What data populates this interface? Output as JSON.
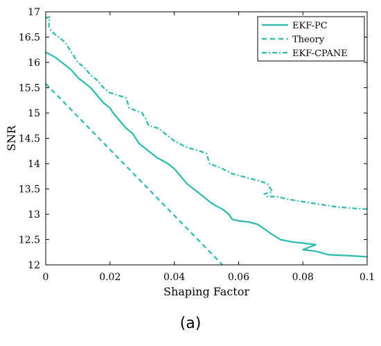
{
  "caption": "(a)",
  "chart_data": {
    "type": "line",
    "xlabel": "Shaping Factor",
    "ylabel": "SNR",
    "xlim": [
      0,
      0.1
    ],
    "ylim": [
      12,
      17
    ],
    "xticks": [
      0,
      0.02,
      0.04,
      0.06,
      0.08,
      0.1
    ],
    "yticks": [
      12,
      12.5,
      13,
      13.5,
      14,
      14.5,
      15,
      15.5,
      16,
      16.5,
      17
    ],
    "xtick_labels": [
      "0",
      "0.02",
      "0.04",
      "0.06",
      "0.08",
      "0.1"
    ],
    "ytick_labels": [
      "12",
      "12.5",
      "13",
      "13.5",
      "14",
      "14.5",
      "15",
      "15.5",
      "16",
      "16.5",
      "17"
    ],
    "legend_position": "top-right",
    "grid": false,
    "color": "#2ab9ad",
    "series": [
      {
        "name": "EKF-PC",
        "style": "solid",
        "x": [
          0,
          0.003,
          0.005,
          0.008,
          0.01,
          0.012,
          0.014,
          0.016,
          0.018,
          0.02,
          0.021,
          0.023,
          0.025,
          0.027,
          0.029,
          0.031,
          0.033,
          0.035,
          0.0352,
          0.038,
          0.04,
          0.042,
          0.044,
          0.046,
          0.048,
          0.05,
          0.052,
          0.055,
          0.057,
          0.058,
          0.06,
          0.063,
          0.066,
          0.07,
          0.073,
          0.077,
          0.08,
          0.084,
          0.08,
          0.084,
          0.088,
          0.095,
          0.1
        ],
        "y": [
          16.2,
          16.1,
          16.0,
          15.85,
          15.7,
          15.6,
          15.5,
          15.35,
          15.2,
          15.1,
          15.0,
          14.85,
          14.7,
          14.6,
          14.4,
          14.3,
          14.2,
          14.1,
          14.1,
          14.0,
          13.9,
          13.75,
          13.6,
          13.5,
          13.4,
          13.3,
          13.2,
          13.1,
          13.0,
          12.9,
          12.87,
          12.85,
          12.8,
          12.62,
          12.5,
          12.45,
          12.43,
          12.4,
          12.3,
          12.27,
          12.2,
          12.18,
          12.16
        ]
      },
      {
        "name": "Theory",
        "style": "dashed",
        "x": [
          0,
          0.055
        ],
        "y": [
          15.58,
          12.0
        ]
      },
      {
        "name": "EKF-CPANE",
        "style": "dashdot",
        "x": [
          0,
          0.0005,
          0.0012,
          0.001,
          0.002,
          0.004,
          0.006,
          0.008,
          0.01,
          0.012,
          0.014,
          0.016,
          0.018,
          0.02,
          0.025,
          0.026,
          0.03,
          0.031,
          0.032,
          0.035,
          0.037,
          0.04,
          0.043,
          0.045,
          0.048,
          0.05,
          0.051,
          0.055,
          0.058,
          0.061,
          0.064,
          0.067,
          0.069,
          0.0705,
          0.068,
          0.069,
          0.072,
          0.075,
          0.08,
          0.085,
          0.09,
          0.095,
          0.1
        ],
        "y": [
          16.9,
          16.88,
          16.9,
          16.7,
          16.6,
          16.5,
          16.4,
          16.2,
          16.0,
          15.9,
          15.75,
          15.65,
          15.5,
          15.4,
          15.3,
          15.1,
          15.0,
          14.9,
          14.75,
          14.7,
          14.6,
          14.45,
          14.35,
          14.3,
          14.25,
          14.2,
          14.0,
          13.9,
          13.8,
          13.75,
          13.7,
          13.65,
          13.6,
          13.45,
          13.4,
          13.35,
          13.35,
          13.3,
          13.25,
          13.2,
          13.15,
          13.12,
          13.1
        ]
      }
    ]
  }
}
